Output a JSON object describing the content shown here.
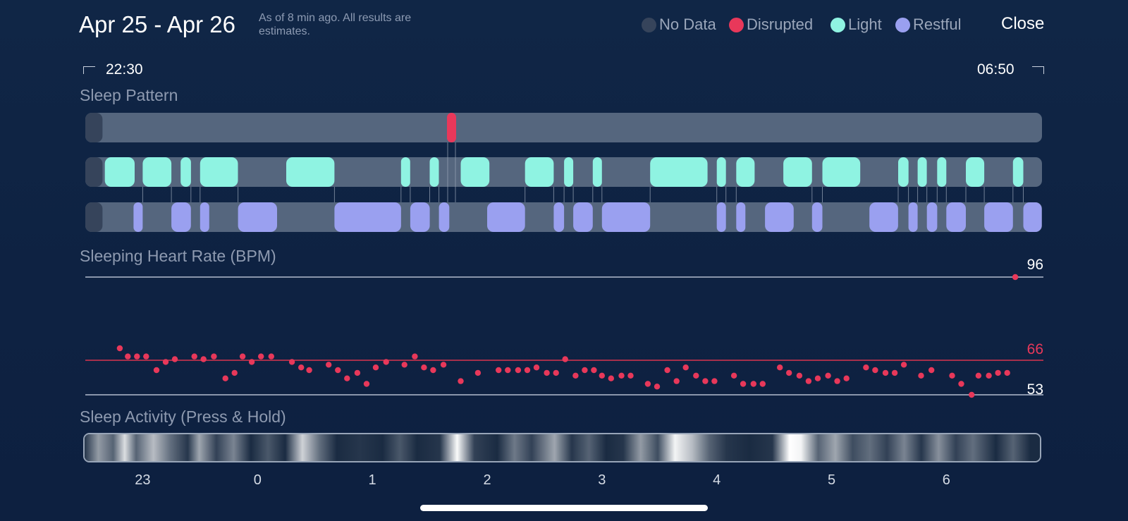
{
  "header": {
    "date_range": "Apr 25 - Apr 26",
    "as_of": "As of 8 min ago. All results are estimates.",
    "close_label": "Close"
  },
  "legend": [
    {
      "label": "No Data",
      "color": "#36445b"
    },
    {
      "label": "Disrupted",
      "color": "#e8385a"
    },
    {
      "label": "Light",
      "color": "#8ff3e2"
    },
    {
      "label": "Restful",
      "color": "#9aa0f0"
    }
  ],
  "timeline": {
    "start": "22:30",
    "end": "06:50"
  },
  "sleep_pattern": {
    "title": "Sleep Pattern",
    "start_hour": 22.5,
    "end_hour": 30.833,
    "no_data": [
      [
        22.5,
        22.65
      ]
    ],
    "disrupted": [
      [
        25.65,
        25.73
      ]
    ],
    "light": [
      [
        22.67,
        22.93
      ],
      [
        23.0,
        23.25
      ],
      [
        23.33,
        23.42
      ],
      [
        23.5,
        23.83
      ],
      [
        24.25,
        24.67
      ],
      [
        25.25,
        25.33
      ],
      [
        25.5,
        25.58
      ],
      [
        25.77,
        26.02
      ],
      [
        26.33,
        26.58
      ],
      [
        26.67,
        26.75
      ],
      [
        26.92,
        27.0
      ],
      [
        27.42,
        27.92
      ],
      [
        28.0,
        28.08
      ],
      [
        28.17,
        28.33
      ],
      [
        28.58,
        28.83
      ],
      [
        28.92,
        29.25
      ],
      [
        29.58,
        29.67
      ],
      [
        29.75,
        29.83
      ],
      [
        29.92,
        30.0
      ],
      [
        30.17,
        30.33
      ],
      [
        30.58,
        30.67
      ]
    ],
    "restful": [
      [
        22.92,
        23.0
      ],
      [
        23.25,
        23.42
      ],
      [
        23.5,
        23.58
      ],
      [
        23.83,
        24.17
      ],
      [
        24.67,
        25.25
      ],
      [
        25.33,
        25.5
      ],
      [
        25.58,
        25.67
      ],
      [
        26.0,
        26.33
      ],
      [
        26.58,
        26.67
      ],
      [
        26.75,
        26.92
      ],
      [
        27.0,
        27.42
      ],
      [
        28.0,
        28.08
      ],
      [
        28.17,
        28.25
      ],
      [
        28.42,
        28.67
      ],
      [
        28.83,
        28.92
      ],
      [
        29.33,
        29.58
      ],
      [
        29.67,
        29.75
      ],
      [
        29.83,
        29.92
      ],
      [
        30.0,
        30.17
      ],
      [
        30.33,
        30.58
      ],
      [
        30.67,
        30.83
      ]
    ]
  },
  "heart_rate": {
    "title": "Sleeping Heart Rate (BPM)",
    "max_label": "96",
    "avg_label": "66",
    "min_label": "53",
    "points": [
      [
        22.8,
        70
      ],
      [
        22.87,
        67
      ],
      [
        22.95,
        67
      ],
      [
        23.03,
        67
      ],
      [
        23.12,
        62
      ],
      [
        23.2,
        65
      ],
      [
        23.28,
        66
      ],
      [
        23.45,
        67
      ],
      [
        23.53,
        66
      ],
      [
        23.62,
        67
      ],
      [
        23.72,
        59
      ],
      [
        23.8,
        61
      ],
      [
        23.87,
        67
      ],
      [
        23.95,
        65
      ],
      [
        24.03,
        67
      ],
      [
        24.12,
        67
      ],
      [
        24.3,
        65
      ],
      [
        24.38,
        63
      ],
      [
        24.45,
        62
      ],
      [
        24.62,
        64
      ],
      [
        24.7,
        62
      ],
      [
        24.78,
        59
      ],
      [
        24.87,
        61
      ],
      [
        24.95,
        57
      ],
      [
        25.03,
        63
      ],
      [
        25.12,
        65
      ],
      [
        25.28,
        64
      ],
      [
        25.37,
        67
      ],
      [
        25.45,
        63
      ],
      [
        25.53,
        62
      ],
      [
        25.62,
        64
      ],
      [
        25.77,
        58
      ],
      [
        25.92,
        61
      ],
      [
        26.1,
        62
      ],
      [
        26.18,
        62
      ],
      [
        26.27,
        62
      ],
      [
        26.35,
        62
      ],
      [
        26.43,
        63
      ],
      [
        26.52,
        61
      ],
      [
        26.6,
        61
      ],
      [
        26.68,
        66
      ],
      [
        26.77,
        60
      ],
      [
        26.85,
        62
      ],
      [
        26.93,
        62
      ],
      [
        27.0,
        60
      ],
      [
        27.08,
        59
      ],
      [
        27.17,
        60
      ],
      [
        27.25,
        60
      ],
      [
        27.4,
        57
      ],
      [
        27.48,
        56
      ],
      [
        27.57,
        62
      ],
      [
        27.65,
        58
      ],
      [
        27.73,
        63
      ],
      [
        27.82,
        60
      ],
      [
        27.9,
        58
      ],
      [
        27.98,
        58
      ],
      [
        28.15,
        60
      ],
      [
        28.23,
        57
      ],
      [
        28.32,
        57
      ],
      [
        28.4,
        57
      ],
      [
        28.55,
        63
      ],
      [
        28.63,
        61
      ],
      [
        28.72,
        60
      ],
      [
        28.8,
        58
      ],
      [
        28.88,
        59
      ],
      [
        28.97,
        60
      ],
      [
        29.05,
        58
      ],
      [
        29.13,
        59
      ],
      [
        29.3,
        63
      ],
      [
        29.38,
        62
      ],
      [
        29.47,
        61
      ],
      [
        29.55,
        61
      ],
      [
        29.63,
        64
      ],
      [
        29.78,
        60
      ],
      [
        29.87,
        62
      ],
      [
        30.05,
        60
      ],
      [
        30.13,
        57
      ],
      [
        30.22,
        53
      ],
      [
        30.28,
        60
      ],
      [
        30.37,
        60
      ],
      [
        30.45,
        61
      ],
      [
        30.53,
        61
      ],
      [
        30.6,
        96
      ]
    ]
  },
  "sleep_activity": {
    "title": "Sleep Activity (Press & Hold)",
    "intensity": [
      [
        22.5,
        0.1
      ],
      [
        22.62,
        0.55
      ],
      [
        22.75,
        0.3
      ],
      [
        22.85,
        0.85
      ],
      [
        22.95,
        0.3
      ],
      [
        23.1,
        0.7
      ],
      [
        23.25,
        0.35
      ],
      [
        23.4,
        0.1
      ],
      [
        23.5,
        0.6
      ],
      [
        23.65,
        0.15
      ],
      [
        23.8,
        0.45
      ],
      [
        23.95,
        0.05
      ],
      [
        24.1,
        0.25
      ],
      [
        24.25,
        0.05
      ],
      [
        24.4,
        0.8
      ],
      [
        24.55,
        0.35
      ],
      [
        24.7,
        0.05
      ],
      [
        24.9,
        0.1
      ],
      [
        25.1,
        0.05
      ],
      [
        25.25,
        0.25
      ],
      [
        25.4,
        0.05
      ],
      [
        25.6,
        0.1
      ],
      [
        25.75,
        0.98
      ],
      [
        25.9,
        0.15
      ],
      [
        26.1,
        0.05
      ],
      [
        26.25,
        0.4
      ],
      [
        26.4,
        0.15
      ],
      [
        26.6,
        0.6
      ],
      [
        26.75,
        0.1
      ],
      [
        26.9,
        0.3
      ],
      [
        27.05,
        0.05
      ],
      [
        27.2,
        0.1
      ],
      [
        27.35,
        0.55
      ],
      [
        27.5,
        0.2
      ],
      [
        27.65,
        0.95
      ],
      [
        27.8,
        0.7
      ],
      [
        27.95,
        0.3
      ],
      [
        28.1,
        0.1
      ],
      [
        28.3,
        0.05
      ],
      [
        28.5,
        0.1
      ],
      [
        28.65,
        1.0
      ],
      [
        28.75,
        0.95
      ],
      [
        28.9,
        0.3
      ],
      [
        29.05,
        0.6
      ],
      [
        29.2,
        0.2
      ],
      [
        29.35,
        0.35
      ],
      [
        29.5,
        0.15
      ],
      [
        29.65,
        0.45
      ],
      [
        29.8,
        0.1
      ],
      [
        29.95,
        0.5
      ],
      [
        30.1,
        0.15
      ],
      [
        30.25,
        0.35
      ],
      [
        30.45,
        0.05
      ],
      [
        30.6,
        0.3
      ],
      [
        30.75,
        0.05
      ],
      [
        30.833,
        0.05
      ]
    ]
  },
  "x_axis": {
    "ticks": [
      {
        "hour": 23,
        "label": "23"
      },
      {
        "hour": 24,
        "label": "0"
      },
      {
        "hour": 25,
        "label": "1"
      },
      {
        "hour": 26,
        "label": "2"
      },
      {
        "hour": 27,
        "label": "3"
      },
      {
        "hour": 28,
        "label": "4"
      },
      {
        "hour": 29,
        "label": "5"
      },
      {
        "hour": 30,
        "label": "6"
      }
    ]
  },
  "colors": {
    "track": "#55667e",
    "no_data": "#36445b",
    "disrupted": "#e8385a",
    "light": "#8ff3e2",
    "restful": "#9aa0f0",
    "heart": "#e8385a",
    "avg_line": "#d8344f",
    "ref_line": "#8a96ab"
  },
  "home_indicator": {
    "visible": true
  }
}
